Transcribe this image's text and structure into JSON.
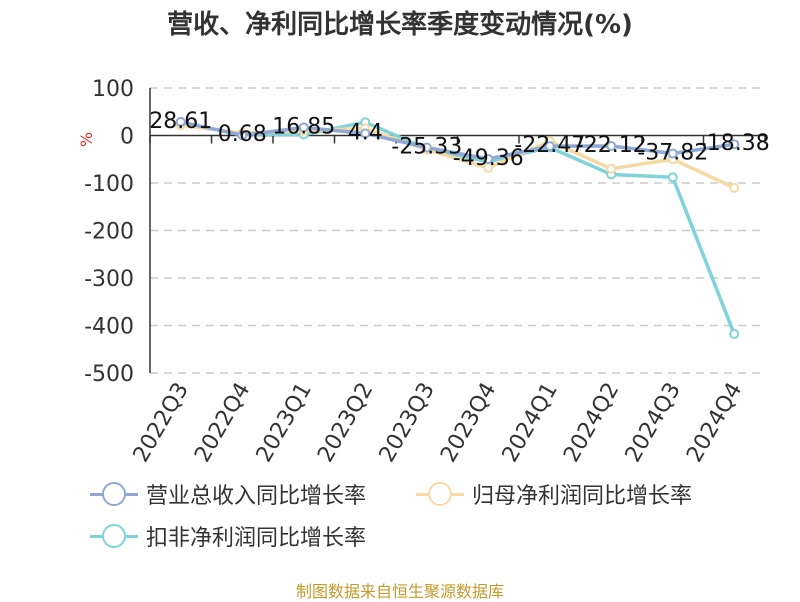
{
  "chart_data": {
    "type": "line",
    "title": "营收、净利同比增长率季度变动情况(%)",
    "ylabel": "%",
    "categories": [
      "2022Q3",
      "2022Q4",
      "2023Q1",
      "2023Q2",
      "2023Q3",
      "2023Q4",
      "2024Q1",
      "2024Q2",
      "2024Q3",
      "2024Q4"
    ],
    "ylim": [
      -500,
      100
    ],
    "yticks": [
      100,
      0,
      -100,
      -200,
      -300,
      -400,
      -500
    ],
    "grid": true,
    "legend_position": "bottom",
    "series": [
      {
        "name": "营业总收入同比增长率",
        "color": "#8fa9d6",
        "values": [
          28.61,
          0.68,
          16.85,
          4.4,
          -25.33,
          -49.36,
          -22.47,
          -22.12,
          -37.82,
          -18.38
        ],
        "show_labels": true
      },
      {
        "name": "归母净利润同比增长率",
        "color": "#f7d9a3",
        "values": [
          22,
          5,
          10,
          15,
          -30,
          -68,
          -12,
          -70,
          -50,
          -110
        ],
        "show_labels": false
      },
      {
        "name": "扣非净利润同比增长率",
        "color": "#7fd3d9",
        "values": [
          25,
          3,
          2,
          28,
          -28,
          -55,
          -25,
          -82,
          -88,
          -418
        ],
        "show_labels": false
      }
    ],
    "data_labels": [
      "28.61",
      "0.68",
      "16.85",
      "4.4",
      "-25.33",
      "-49.36",
      "-22.47",
      "-22.12",
      "-37.82",
      "-18.38"
    ]
  },
  "source_note": "制图数据来自恒生聚源数据库"
}
